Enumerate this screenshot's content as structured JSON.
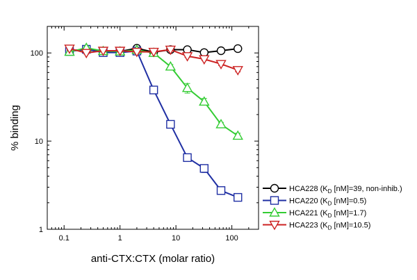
{
  "chart_data": {
    "type": "line",
    "title": "",
    "xlabel": "anti-CTX:CTX (molar ratio)",
    "ylabel": "% binding",
    "xscale": "log",
    "yscale": "log",
    "xlim": [
      0.05,
      300
    ],
    "ylim": [
      1,
      200
    ],
    "xticks": [
      0.1,
      1,
      10,
      100
    ],
    "xtick_labels": [
      "0.1",
      "1",
      "10",
      "100"
    ],
    "yticks": [
      1,
      10,
      100
    ],
    "ytick_labels": [
      "1",
      "10",
      "100"
    ],
    "grid": false,
    "legend_position": "right",
    "x": [
      0.125,
      0.25,
      0.5,
      1,
      2,
      4,
      8,
      16,
      32,
      64,
      128
    ],
    "series": [
      {
        "name": "HCA228",
        "legend_parts": [
          "HCA228 (K",
          "D",
          " [nM]=39, non-inhib.)"
        ],
        "color": "#000000",
        "marker": "circle",
        "values": [
          106,
          110,
          103,
          104,
          113,
          102,
          109,
          109,
          101,
          106,
          112
        ],
        "errors": [
          4,
          4,
          3,
          3,
          3,
          3,
          3,
          3,
          3,
          3,
          3
        ]
      },
      {
        "name": "HCA220",
        "legend_parts": [
          "HCA220 (K",
          "D",
          " [nM]=0.5)"
        ],
        "color": "#1f2fa3",
        "marker": "square",
        "values": [
          104,
          110,
          101,
          101,
          105,
          38,
          15.5,
          6.5,
          4.9,
          2.75,
          2.3
        ],
        "errors": [
          4,
          4,
          3,
          3,
          3,
          2,
          0.8,
          0.4,
          0.5,
          0.15,
          0.1
        ]
      },
      {
        "name": "HCA221",
        "legend_parts": [
          "HCA221 (K",
          "D",
          " [nM]=1.7)"
        ],
        "color": "#33cc33",
        "marker": "triangle-up",
        "values": [
          103,
          114,
          105,
          104,
          108,
          100,
          70,
          40,
          28,
          15.5,
          11.5
        ],
        "errors": [
          4,
          5,
          4,
          3,
          3,
          3,
          4,
          5,
          2.5,
          0.8,
          0.8
        ]
      },
      {
        "name": "HCA223",
        "legend_parts": [
          "HCA223 (K",
          "D",
          " [nM]=10.5)"
        ],
        "color": "#cc2222",
        "marker": "triangle-down",
        "values": [
          112,
          100,
          106,
          106,
          103,
          103,
          109,
          92,
          85,
          75,
          64
        ],
        "errors": [
          4,
          3,
          3,
          3,
          3,
          3,
          4,
          3,
          3,
          3,
          3
        ]
      }
    ]
  }
}
